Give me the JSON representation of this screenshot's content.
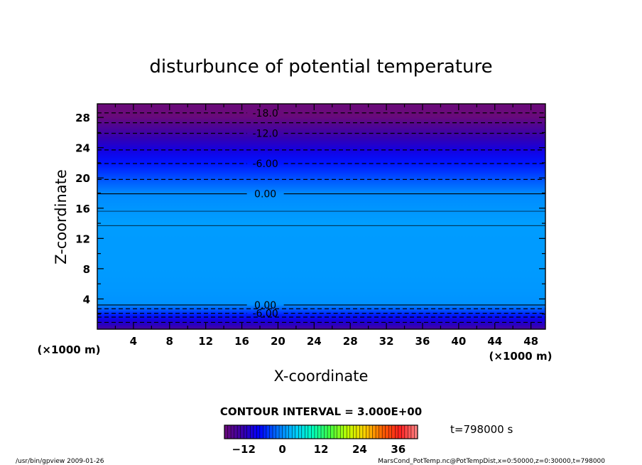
{
  "chart_data": {
    "type": "heatmap",
    "title": "disturbunce of potential temperature",
    "xlabel": "X-coordinate",
    "ylabel": "Z-coordinate",
    "x_unit": "(×1000 m)",
    "y_unit": "(×1000 m)",
    "xlim": [
      0,
      49.6
    ],
    "ylim": [
      0,
      29.8
    ],
    "x_ticks": [
      4,
      8,
      12,
      16,
      20,
      24,
      28,
      32,
      36,
      40,
      44,
      48
    ],
    "y_ticks": [
      4,
      8,
      12,
      16,
      20,
      24,
      28
    ],
    "x_tick_labels": [
      "4",
      "8",
      "12",
      "16",
      "20",
      "24",
      "28",
      "32",
      "36",
      "40",
      "44",
      "48"
    ],
    "y_tick_labels": [
      "4",
      "8",
      "12",
      "16",
      "20",
      "24",
      "28"
    ],
    "profile": {
      "z": [
        0.0,
        0.6,
        1.2,
        1.8,
        2.3,
        2.8,
        3.3,
        5.0,
        8.0,
        12.0,
        14.0,
        15.6,
        17.9,
        19.8,
        21.9,
        23.7,
        25.3,
        26.9,
        28.2,
        29.8
      ],
      "value": [
        -14,
        -11,
        -9,
        -6,
        -4,
        -2,
        0.5,
        0.8,
        1.0,
        1.0,
        1.2,
        0.8,
        0.0,
        -3,
        -6,
        -9,
        -12,
        -15,
        -18,
        -22
      ]
    },
    "contours": [
      {
        "level": -18.0,
        "z": 28.6,
        "style": "dashed",
        "label": "-18.0"
      },
      {
        "level": -15.0,
        "z": 27.3,
        "style": "dashed"
      },
      {
        "level": -12.0,
        "z": 25.9,
        "style": "dashed",
        "label": "-12.0"
      },
      {
        "level": -9.0,
        "z": 23.7,
        "style": "dashed"
      },
      {
        "level": -6.0,
        "z": 21.9,
        "style": "dashed",
        "label": "-6.00"
      },
      {
        "level": -3.0,
        "z": 19.8,
        "style": "dashed"
      },
      {
        "level": 0.0,
        "z": 17.9,
        "style": "solid",
        "label": "0.00"
      },
      {
        "level": 0.0,
        "z": 15.6,
        "style": "thin"
      },
      {
        "level": 0.0,
        "z": 13.7,
        "style": "thin"
      },
      {
        "level": 0.0,
        "z": 3.2,
        "style": "solid",
        "label": "0.00"
      },
      {
        "level": -3.0,
        "z": 2.7,
        "style": "dashed"
      },
      {
        "level": -6.0,
        "z": 2.1,
        "style": "dashed",
        "label": "-6.00"
      },
      {
        "level": -9.0,
        "z": 1.6,
        "style": "dashed"
      },
      {
        "level": -12.0,
        "z": 0.9,
        "style": "dashed"
      }
    ],
    "contour_interval_text": "CONTOUR INTERVAL = 3.000E+00",
    "colorbar": {
      "min": -18,
      "max": 42,
      "ticks": [
        -12,
        0,
        12,
        24,
        36
      ],
      "tick_labels": [
        "−12",
        "0",
        "12",
        "24",
        "36"
      ],
      "colors": [
        "#6a0a7a",
        "#3a00a8",
        "#0000ff",
        "#0070ff",
        "#00c8ff",
        "#00ffc0",
        "#40ff40",
        "#c0ff00",
        "#ffd000",
        "#ff6000",
        "#ff2020",
        "#ff8888"
      ]
    },
    "time_label": "t=798000 s",
    "footer_left": "/usr/bin/gpview   2009-01-26",
    "footer_right": "MarsCond_PotTemp.nc@PotTempDist,x=0:50000,z=0:30000,t=798000"
  }
}
